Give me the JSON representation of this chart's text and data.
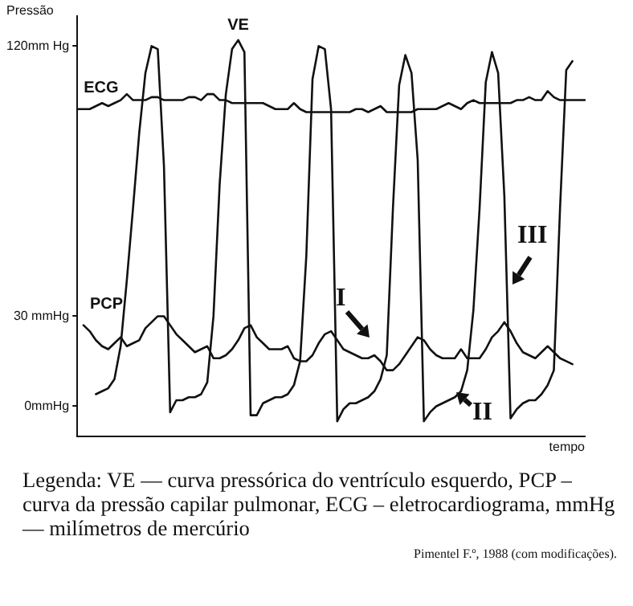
{
  "chart_data": {
    "type": "line",
    "ylabel": "Pressão",
    "xlabel": "tempo",
    "ylim": [
      -10,
      130
    ],
    "categories": [
      null,
      null,
      null,
      null,
      null,
      null,
      null,
      null,
      null,
      null,
      null,
      null,
      null,
      null,
      null,
      null,
      null,
      null,
      null,
      null,
      null,
      null,
      null,
      null,
      null,
      null,
      null,
      null,
      null,
      null,
      null,
      null,
      null,
      null,
      null,
      null,
      null,
      null,
      null,
      null,
      null,
      null,
      null,
      null,
      null,
      null,
      null,
      null,
      null,
      null,
      null,
      null,
      null,
      null,
      null,
      null,
      null,
      null,
      null,
      null,
      null,
      null,
      null,
      null,
      null,
      null,
      null,
      null,
      null,
      null,
      null,
      null,
      null,
      null,
      null,
      null,
      null,
      null,
      null,
      null,
      null,
      null,
      null
    ],
    "yticks": [
      {
        "value": 0,
        "label": "0mmHg"
      },
      {
        "value": 30,
        "label": "30 mmHg"
      },
      {
        "value": 120,
        "label": "120mm Hg"
      }
    ],
    "tick_labels": "y",
    "grid": false,
    "legend": false,
    "marker": "none",
    "line_style": "solid",
    "series": [
      {
        "name": "VE",
        "color": "#111111",
        "values": [
          null,
          null,
          null,
          4,
          5,
          6,
          9,
          20,
          42,
          66,
          91,
          111,
          120,
          119,
          80,
          -2,
          2,
          2,
          3,
          3,
          4,
          8,
          30,
          74,
          104,
          119,
          122,
          118,
          -3,
          -3,
          1,
          2,
          3,
          3,
          4,
          7,
          15,
          50,
          109,
          120,
          119,
          99,
          -5,
          -1,
          1,
          1,
          2,
          3,
          5,
          9,
          17,
          66,
          107,
          117,
          111,
          82,
          -5,
          -2,
          0,
          1,
          2,
          3,
          5,
          12,
          32,
          66,
          108,
          118,
          111,
          70,
          -4,
          -1,
          1,
          2,
          2,
          4,
          7,
          12,
          66,
          112,
          115,
          null,
          null
        ]
      },
      {
        "name": "ECG",
        "color": "#111111",
        "values": [
          99,
          99,
          99,
          100,
          101,
          100,
          101,
          102,
          104,
          102,
          102,
          102,
          103,
          103,
          102,
          102,
          102,
          102,
          103,
          103,
          102,
          104,
          104,
          102,
          102,
          101,
          101,
          101,
          101,
          101,
          101,
          100,
          99,
          99,
          99,
          101,
          99,
          98,
          98,
          98,
          98,
          98,
          98,
          98,
          98,
          99,
          99,
          98,
          99,
          100,
          98,
          98,
          98,
          98,
          98,
          99,
          99,
          99,
          99,
          100,
          101,
          100,
          99,
          101,
          102,
          101,
          101,
          101,
          101,
          101,
          101,
          102,
          102,
          103,
          102,
          102,
          105,
          103,
          102,
          102,
          102,
          102,
          102
        ]
      },
      {
        "name": "PCP",
        "color": "#111111",
        "values": [
          null,
          27,
          25,
          22,
          20,
          19,
          21,
          23,
          20,
          21,
          22,
          26,
          28,
          30,
          30,
          27,
          24,
          22,
          20,
          18,
          19,
          20,
          16,
          16,
          17,
          19,
          22,
          26,
          27,
          23,
          21,
          19,
          19,
          19,
          20,
          16,
          15,
          15,
          17,
          21,
          24,
          25,
          22,
          19,
          18,
          17,
          16,
          16,
          17,
          15,
          12,
          12,
          14,
          17,
          20,
          23,
          22,
          19,
          17,
          16,
          16,
          16,
          19,
          16,
          16,
          16,
          19,
          23,
          25,
          28,
          25,
          21,
          18,
          17,
          16,
          18,
          20,
          18,
          16,
          15,
          14,
          null,
          null
        ]
      }
    ],
    "annotations": [
      "I",
      "II",
      "III",
      "Legenda: VE — curva pressórica do ventrículo esquerdo, PCP – curva da pressão capilar pulmonar, ECG – eletrocardiograma, mmHg — milímetros de mercúrio",
      "Pimentel F.º, 1988 (com modificações)."
    ]
  }
}
